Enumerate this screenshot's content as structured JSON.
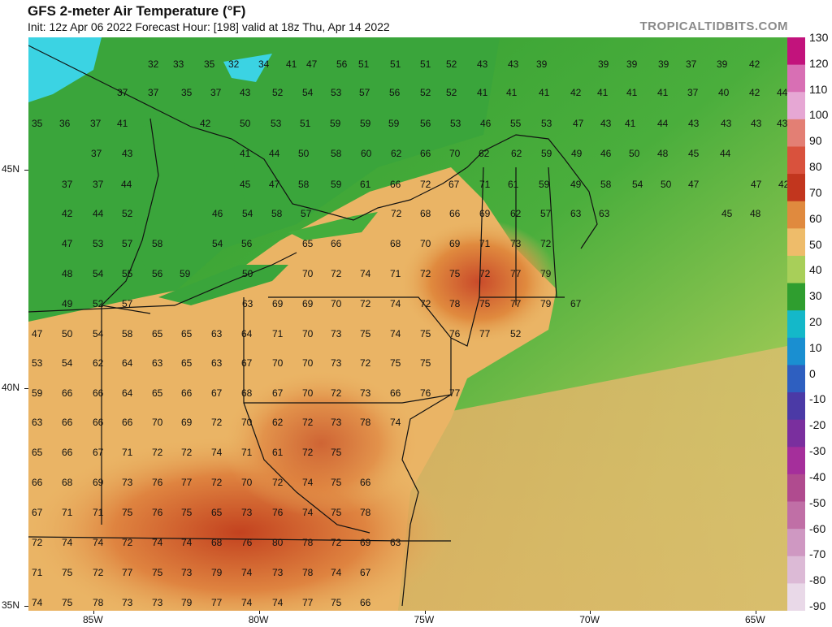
{
  "header": {
    "title": "GFS 2-meter Air Temperature (°F)",
    "subtitle": "Init: 12z Apr 06 2022   Forecast Hour: [198]   valid at 18z Thu, Apr 14 2022",
    "brand": "TROPICALTIDBITS.COM"
  },
  "axes": {
    "latitude_labels": [
      {
        "label": "45N",
        "value": 45
      },
      {
        "label": "40N",
        "value": 40
      },
      {
        "label": "35N",
        "value": 35
      }
    ],
    "longitude_labels": [
      {
        "label": "85W",
        "value": -85
      },
      {
        "label": "80W",
        "value": -80
      },
      {
        "label": "75W",
        "value": -75
      },
      {
        "label": "70W",
        "value": -70
      },
      {
        "label": "65W",
        "value": -65
      }
    ]
  },
  "colorbar": {
    "labels": [
      "130",
      "120",
      "110",
      "100",
      "90",
      "80",
      "70",
      "60",
      "50",
      "40",
      "30",
      "20",
      "10",
      "0",
      "-10",
      "-20",
      "-30",
      "-40",
      "-50",
      "-60",
      "-70",
      "-80",
      "-90"
    ],
    "colors": [
      "#c2137c",
      "#d86fb4",
      "#e6a7d4",
      "#e37f74",
      "#d9523d",
      "#c2361e",
      "#e08a3e",
      "#eebc6a",
      "#a8cf59",
      "#2f9e2f",
      "#14b8c9",
      "#1a8fd1",
      "#2e5fc0",
      "#4b3aa6",
      "#7a2f9e",
      "#a52f9b",
      "#b04b8f",
      "#c06fa6",
      "#cf98c2",
      "#dcbad6",
      "#e9d9e8"
    ]
  },
  "map": {
    "ocean_color": "#36a83a",
    "lake_color": "#3ad1e6",
    "temperature_labels": [
      [
        143,
        32,
        "32"
      ],
      [
        174,
        32,
        "33"
      ],
      [
        212,
        32,
        "35"
      ],
      [
        242,
        32,
        "32"
      ],
      [
        279,
        32,
        "34"
      ],
      [
        313,
        32,
        "41"
      ],
      [
        338,
        32,
        "47"
      ],
      [
        375,
        32,
        "56"
      ],
      [
        402,
        32,
        "51"
      ],
      [
        441,
        32,
        "51"
      ],
      [
        478,
        32,
        "51"
      ],
      [
        510,
        32,
        "52"
      ],
      [
        548,
        32,
        "43"
      ],
      [
        586,
        32,
        "43"
      ],
      [
        621,
        32,
        "39"
      ],
      [
        697,
        32,
        "39"
      ],
      [
        732,
        32,
        "39"
      ],
      [
        771,
        32,
        "39"
      ],
      [
        805,
        32,
        "37"
      ],
      [
        843,
        32,
        "39"
      ],
      [
        883,
        32,
        "42"
      ],
      [
        105,
        67,
        "37"
      ],
      [
        143,
        67,
        "37"
      ],
      [
        184,
        67,
        "35"
      ],
      [
        220,
        67,
        "37"
      ],
      [
        256,
        67,
        "43"
      ],
      [
        296,
        67,
        "52"
      ],
      [
        333,
        67,
        "54"
      ],
      [
        368,
        67,
        "53"
      ],
      [
        403,
        67,
        "57"
      ],
      [
        440,
        67,
        "56"
      ],
      [
        478,
        67,
        "52"
      ],
      [
        510,
        67,
        "52"
      ],
      [
        548,
        67,
        "41"
      ],
      [
        584,
        67,
        "41"
      ],
      [
        624,
        67,
        "41"
      ],
      [
        663,
        67,
        "42"
      ],
      [
        696,
        67,
        "41"
      ],
      [
        732,
        67,
        "41"
      ],
      [
        770,
        67,
        "41"
      ],
      [
        807,
        67,
        "37"
      ],
      [
        845,
        67,
        "40"
      ],
      [
        883,
        67,
        "42"
      ],
      [
        917,
        67,
        "44"
      ],
      [
        0,
        105,
        "35"
      ],
      [
        34,
        105,
        "36"
      ],
      [
        72,
        105,
        "37"
      ],
      [
        105,
        105,
        "41"
      ],
      [
        207,
        105,
        "42"
      ],
      [
        256,
        105,
        "50"
      ],
      [
        294,
        105,
        "53"
      ],
      [
        330,
        105,
        "51"
      ],
      [
        367,
        105,
        "59"
      ],
      [
        404,
        105,
        "59"
      ],
      [
        439,
        105,
        "59"
      ],
      [
        478,
        105,
        "56"
      ],
      [
        515,
        105,
        "53"
      ],
      [
        552,
        105,
        "46"
      ],
      [
        589,
        105,
        "55"
      ],
      [
        627,
        105,
        "53"
      ],
      [
        666,
        105,
        "47"
      ],
      [
        700,
        105,
        "43"
      ],
      [
        730,
        105,
        "41"
      ],
      [
        770,
        105,
        "44"
      ],
      [
        808,
        105,
        "43"
      ],
      [
        848,
        105,
        "43"
      ],
      [
        885,
        105,
        "43"
      ],
      [
        917,
        105,
        "43"
      ],
      [
        73,
        142,
        "37"
      ],
      [
        111,
        142,
        "43"
      ],
      [
        256,
        142,
        "41"
      ],
      [
        292,
        142,
        "44"
      ],
      [
        328,
        142,
        "50"
      ],
      [
        368,
        142,
        "58"
      ],
      [
        405,
        142,
        "60"
      ],
      [
        442,
        142,
        "62"
      ],
      [
        478,
        142,
        "66"
      ],
      [
        514,
        142,
        "70"
      ],
      [
        550,
        142,
        "62"
      ],
      [
        590,
        142,
        "62"
      ],
      [
        627,
        142,
        "59"
      ],
      [
        664,
        142,
        "49"
      ],
      [
        700,
        142,
        "46"
      ],
      [
        735,
        142,
        "50"
      ],
      [
        770,
        142,
        "48"
      ],
      [
        808,
        142,
        "45"
      ],
      [
        847,
        142,
        "44"
      ],
      [
        37,
        180,
        "37"
      ],
      [
        75,
        180,
        "37"
      ],
      [
        110,
        180,
        "44"
      ],
      [
        256,
        180,
        "45"
      ],
      [
        292,
        180,
        "47"
      ],
      [
        328,
        180,
        "58"
      ],
      [
        368,
        180,
        "59"
      ],
      [
        404,
        180,
        "61"
      ],
      [
        441,
        180,
        "66"
      ],
      [
        478,
        180,
        "72"
      ],
      [
        513,
        180,
        "67"
      ],
      [
        551,
        180,
        "71"
      ],
      [
        586,
        180,
        "61"
      ],
      [
        624,
        180,
        "59"
      ],
      [
        663,
        180,
        "49"
      ],
      [
        700,
        180,
        "58"
      ],
      [
        739,
        180,
        "54"
      ],
      [
        774,
        180,
        "50"
      ],
      [
        808,
        180,
        "47"
      ],
      [
        885,
        180,
        "47"
      ],
      [
        919,
        180,
        "42"
      ],
      [
        37,
        216,
        "42"
      ],
      [
        75,
        216,
        "44"
      ],
      [
        111,
        216,
        "52"
      ],
      [
        222,
        216,
        "46"
      ],
      [
        259,
        216,
        "54"
      ],
      [
        295,
        216,
        "58"
      ],
      [
        331,
        216,
        "57"
      ],
      [
        442,
        216,
        "72"
      ],
      [
        478,
        216,
        "68"
      ],
      [
        514,
        216,
        "66"
      ],
      [
        551,
        216,
        "69"
      ],
      [
        589,
        216,
        "62"
      ],
      [
        626,
        216,
        "57"
      ],
      [
        663,
        216,
        "63"
      ],
      [
        698,
        216,
        "63"
      ],
      [
        849,
        216,
        "45"
      ],
      [
        884,
        216,
        "48"
      ],
      [
        37,
        253,
        "47"
      ],
      [
        75,
        253,
        "53"
      ],
      [
        111,
        253,
        "57"
      ],
      [
        148,
        253,
        "58"
      ],
      [
        222,
        253,
        "54"
      ],
      [
        258,
        253,
        "56"
      ],
      [
        333,
        253,
        "65"
      ],
      [
        368,
        253,
        "66"
      ],
      [
        441,
        253,
        "68"
      ],
      [
        478,
        253,
        "70"
      ],
      [
        514,
        253,
        "69"
      ],
      [
        551,
        253,
        "71"
      ],
      [
        589,
        253,
        "73"
      ],
      [
        626,
        253,
        "72"
      ],
      [
        37,
        290,
        "48"
      ],
      [
        75,
        290,
        "54"
      ],
      [
        111,
        290,
        "55"
      ],
      [
        148,
        290,
        "56"
      ],
      [
        182,
        290,
        "59"
      ],
      [
        259,
        290,
        "50"
      ],
      [
        333,
        290,
        "70"
      ],
      [
        368,
        290,
        "72"
      ],
      [
        404,
        290,
        "74"
      ],
      [
        441,
        290,
        "71"
      ],
      [
        478,
        290,
        "72"
      ],
      [
        514,
        290,
        "75"
      ],
      [
        551,
        290,
        "72"
      ],
      [
        589,
        290,
        "77"
      ],
      [
        626,
        290,
        "79"
      ],
      [
        37,
        327,
        "49"
      ],
      [
        75,
        327,
        "52"
      ],
      [
        111,
        327,
        "57"
      ],
      [
        259,
        327,
        "63"
      ],
      [
        296,
        327,
        "69"
      ],
      [
        333,
        327,
        "69"
      ],
      [
        368,
        327,
        "70"
      ],
      [
        404,
        327,
        "72"
      ],
      [
        441,
        327,
        "74"
      ],
      [
        478,
        327,
        "72"
      ],
      [
        514,
        327,
        "78"
      ],
      [
        551,
        327,
        "75"
      ],
      [
        589,
        327,
        "77"
      ],
      [
        626,
        327,
        "79"
      ],
      [
        663,
        327,
        "67"
      ],
      [
        0,
        364,
        "47"
      ],
      [
        37,
        364,
        "50"
      ],
      [
        75,
        364,
        "54"
      ],
      [
        111,
        364,
        "58"
      ],
      [
        148,
        364,
        "65"
      ],
      [
        184,
        364,
        "65"
      ],
      [
        221,
        364,
        "63"
      ],
      [
        258,
        364,
        "64"
      ],
      [
        296,
        364,
        "71"
      ],
      [
        333,
        364,
        "70"
      ],
      [
        368,
        364,
        "73"
      ],
      [
        404,
        364,
        "75"
      ],
      [
        441,
        364,
        "74"
      ],
      [
        478,
        364,
        "75"
      ],
      [
        514,
        364,
        "76"
      ],
      [
        551,
        364,
        "77"
      ],
      [
        589,
        364,
        "52"
      ],
      [
        0,
        400,
        "53"
      ],
      [
        37,
        400,
        "54"
      ],
      [
        75,
        400,
        "62"
      ],
      [
        111,
        400,
        "64"
      ],
      [
        148,
        400,
        "63"
      ],
      [
        184,
        400,
        "65"
      ],
      [
        221,
        400,
        "63"
      ],
      [
        258,
        400,
        "67"
      ],
      [
        296,
        400,
        "70"
      ],
      [
        333,
        400,
        "70"
      ],
      [
        368,
        400,
        "73"
      ],
      [
        404,
        400,
        "72"
      ],
      [
        441,
        400,
        "75"
      ],
      [
        478,
        400,
        "75"
      ],
      [
        0,
        437,
        "59"
      ],
      [
        37,
        437,
        "66"
      ],
      [
        75,
        437,
        "66"
      ],
      [
        111,
        437,
        "64"
      ],
      [
        148,
        437,
        "65"
      ],
      [
        184,
        437,
        "66"
      ],
      [
        221,
        437,
        "67"
      ],
      [
        258,
        437,
        "68"
      ],
      [
        296,
        437,
        "67"
      ],
      [
        333,
        437,
        "70"
      ],
      [
        368,
        437,
        "72"
      ],
      [
        404,
        437,
        "73"
      ],
      [
        441,
        437,
        "66"
      ],
      [
        478,
        437,
        "76"
      ],
      [
        514,
        437,
        "77"
      ],
      [
        0,
        473,
        "63"
      ],
      [
        37,
        473,
        "66"
      ],
      [
        75,
        473,
        "66"
      ],
      [
        111,
        473,
        "66"
      ],
      [
        148,
        473,
        "70"
      ],
      [
        184,
        473,
        "69"
      ],
      [
        221,
        473,
        "72"
      ],
      [
        258,
        473,
        "70"
      ],
      [
        296,
        473,
        "62"
      ],
      [
        333,
        473,
        "72"
      ],
      [
        368,
        473,
        "73"
      ],
      [
        404,
        473,
        "78"
      ],
      [
        441,
        473,
        "74"
      ],
      [
        0,
        510,
        "65"
      ],
      [
        37,
        510,
        "66"
      ],
      [
        75,
        510,
        "67"
      ],
      [
        111,
        510,
        "71"
      ],
      [
        148,
        510,
        "72"
      ],
      [
        184,
        510,
        "72"
      ],
      [
        221,
        510,
        "74"
      ],
      [
        258,
        510,
        "71"
      ],
      [
        296,
        510,
        "61"
      ],
      [
        333,
        510,
        "72"
      ],
      [
        368,
        510,
        "75"
      ],
      [
        0,
        547,
        "66"
      ],
      [
        37,
        547,
        "68"
      ],
      [
        75,
        547,
        "69"
      ],
      [
        111,
        547,
        "73"
      ],
      [
        148,
        547,
        "76"
      ],
      [
        184,
        547,
        "77"
      ],
      [
        221,
        547,
        "72"
      ],
      [
        258,
        547,
        "70"
      ],
      [
        296,
        547,
        "72"
      ],
      [
        333,
        547,
        "74"
      ],
      [
        368,
        547,
        "75"
      ],
      [
        404,
        547,
        "66"
      ],
      [
        0,
        584,
        "67"
      ],
      [
        37,
        584,
        "71"
      ],
      [
        75,
        584,
        "71"
      ],
      [
        111,
        584,
        "75"
      ],
      [
        148,
        584,
        "76"
      ],
      [
        184,
        584,
        "75"
      ],
      [
        221,
        584,
        "65"
      ],
      [
        258,
        584,
        "73"
      ],
      [
        296,
        584,
        "76"
      ],
      [
        333,
        584,
        "74"
      ],
      [
        368,
        584,
        "75"
      ],
      [
        404,
        584,
        "78"
      ],
      [
        0,
        621,
        "72"
      ],
      [
        37,
        621,
        "74"
      ],
      [
        75,
        621,
        "74"
      ],
      [
        111,
        621,
        "72"
      ],
      [
        148,
        621,
        "74"
      ],
      [
        184,
        621,
        "74"
      ],
      [
        221,
        621,
        "68"
      ],
      [
        258,
        621,
        "76"
      ],
      [
        296,
        621,
        "80"
      ],
      [
        333,
        621,
        "78"
      ],
      [
        368,
        621,
        "72"
      ],
      [
        404,
        621,
        "69"
      ],
      [
        441,
        621,
        "63"
      ],
      [
        0,
        658,
        "71"
      ],
      [
        37,
        658,
        "75"
      ],
      [
        75,
        658,
        "72"
      ],
      [
        111,
        658,
        "77"
      ],
      [
        148,
        658,
        "75"
      ],
      [
        184,
        658,
        "73"
      ],
      [
        221,
        658,
        "79"
      ],
      [
        258,
        658,
        "74"
      ],
      [
        296,
        658,
        "73"
      ],
      [
        333,
        658,
        "78"
      ],
      [
        368,
        658,
        "74"
      ],
      [
        404,
        658,
        "67"
      ],
      [
        0,
        695,
        "74"
      ],
      [
        37,
        695,
        "75"
      ],
      [
        75,
        695,
        "78"
      ],
      [
        111,
        695,
        "73"
      ],
      [
        148,
        695,
        "73"
      ],
      [
        184,
        695,
        "79"
      ],
      [
        221,
        695,
        "77"
      ],
      [
        258,
        695,
        "74"
      ],
      [
        296,
        695,
        "74"
      ],
      [
        333,
        695,
        "77"
      ],
      [
        368,
        695,
        "75"
      ],
      [
        404,
        695,
        "66"
      ]
    ]
  }
}
